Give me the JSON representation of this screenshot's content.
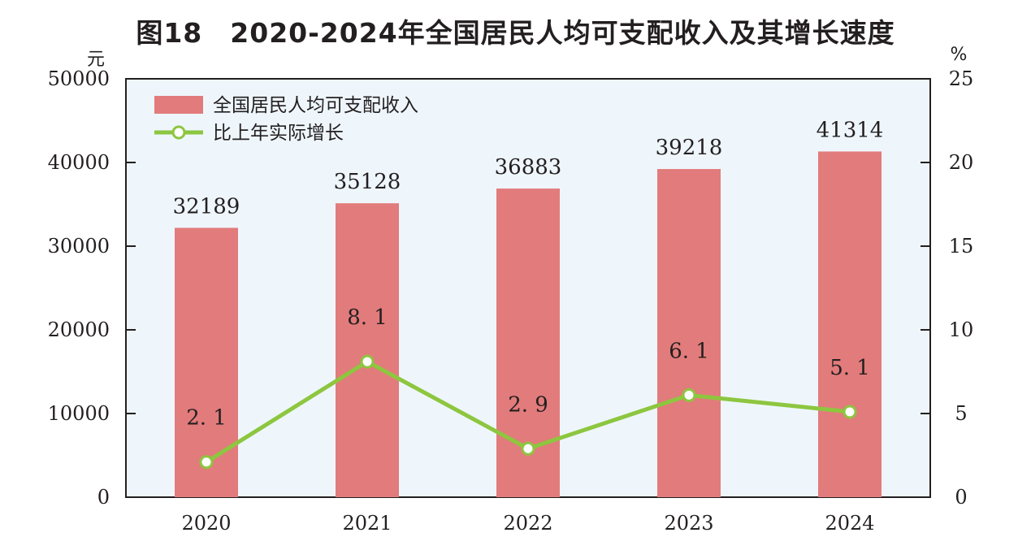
{
  "title": "图18　2020-2024年全国居民人均可支配收入及其增长速度",
  "chart_data": {
    "type": "bar",
    "categories": [
      "2020",
      "2021",
      "2022",
      "2023",
      "2024"
    ],
    "series": [
      {
        "name": "全国居民人均可支配收入",
        "type": "bar",
        "axis": "left",
        "values": [
          32189,
          35128,
          36883,
          39218,
          41314
        ],
        "labels": [
          "32189",
          "35128",
          "36883",
          "39218",
          "41314"
        ],
        "color": "#e27b7b"
      },
      {
        "name": "比上年实际增长",
        "type": "line",
        "axis": "right",
        "values": [
          2.1,
          8.1,
          2.9,
          6.1,
          5.1
        ],
        "labels": [
          "2. 1",
          "8. 1",
          "2. 9",
          "6. 1",
          "5. 1"
        ],
        "color": "#8dc63f"
      }
    ],
    "left_axis": {
      "unit": "元",
      "range": [
        0,
        50000
      ],
      "ticks": [
        "0",
        "10000",
        "20000",
        "30000",
        "40000",
        "50000"
      ]
    },
    "right_axis": {
      "unit": "%",
      "range": [
        0,
        25
      ],
      "ticks": [
        "0",
        "5",
        "10",
        "15",
        "20",
        "25"
      ]
    },
    "legend_position": "top-left",
    "plot_background": "#eef6fc"
  }
}
